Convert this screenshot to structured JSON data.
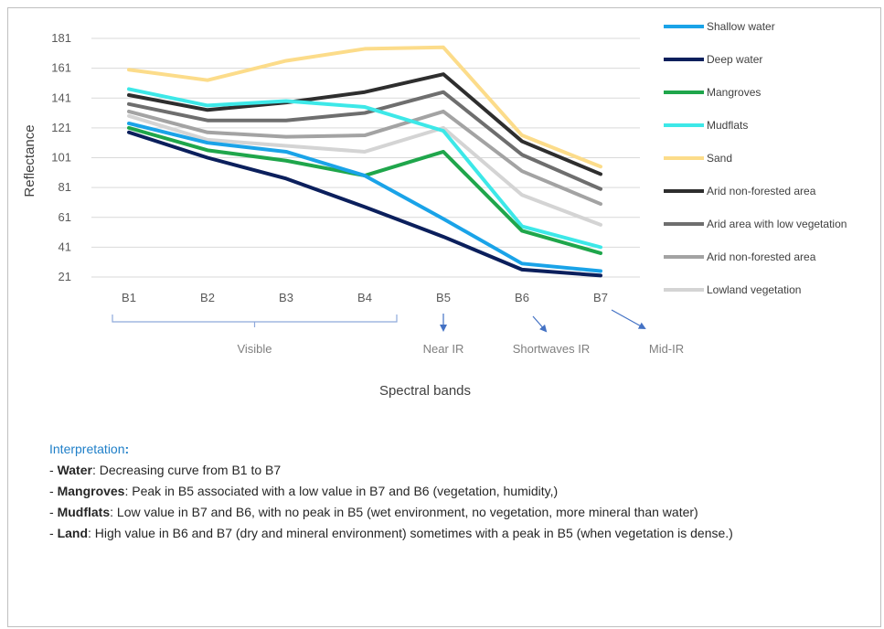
{
  "chart_data": {
    "type": "line",
    "categories": [
      "B1",
      "B2",
      "B3",
      "B4",
      "B5",
      "B6",
      "B7"
    ],
    "ylabel": "Reflectance",
    "xlabel": "Spectral bands",
    "ylim": [
      21,
      181
    ],
    "yticks": [
      21,
      41,
      61,
      81,
      101,
      121,
      141,
      161,
      181
    ],
    "grid": true,
    "legend_position": "right",
    "series": [
      {
        "name": "Shallow water",
        "color": "#1aa3e8",
        "values": [
          124,
          111,
          105,
          89,
          60,
          30,
          25
        ]
      },
      {
        "name": "Deep water",
        "color": "#0b1f5c",
        "values": [
          118,
          101,
          87,
          68,
          48,
          26,
          22
        ]
      },
      {
        "name": "Mangroves",
        "color": "#1fa64b",
        "values": [
          121,
          106,
          99,
          89,
          105,
          52,
          37
        ]
      },
      {
        "name": "Mudflats",
        "color": "#3de8e8",
        "values": [
          147,
          136,
          139,
          135,
          119,
          55,
          41
        ]
      },
      {
        "name": "Sand",
        "color": "#fcdc8a",
        "values": [
          160,
          153,
          166,
          174,
          175,
          116,
          95
        ]
      },
      {
        "name": "Arid non-forested area",
        "color": "#2e2e2e",
        "values": [
          143,
          133,
          138,
          145,
          157,
          112,
          90
        ]
      },
      {
        "name": "Arid area with low vegetation",
        "color": "#6e6e6e",
        "values": [
          137,
          126,
          126,
          131,
          145,
          103,
          80
        ]
      },
      {
        "name": "Arid non-forested area",
        "color": "#a3a3a3",
        "values": [
          132,
          118,
          115,
          116,
          132,
          92,
          70
        ]
      },
      {
        "name": "Lowland vegetation",
        "color": "#d4d4d4",
        "values": [
          129,
          113,
          109,
          105,
          121,
          76,
          56
        ]
      }
    ],
    "band_groups": [
      {
        "label": "Visible",
        "from": "B1",
        "to": "B4"
      },
      {
        "label": "Near IR",
        "at": "B5"
      },
      {
        "label": "Shortwaves IR",
        "at": "B6"
      },
      {
        "label": "Mid-IR",
        "at": "B7"
      }
    ],
    "arrow_color": "#4472c4",
    "bracket_color": "#8ea9db"
  },
  "interpretation": {
    "title": "Interpretation",
    "title_colon": ":",
    "lines": [
      {
        "prefix": "- ",
        "term": "Water",
        "text": ": Decreasing curve from B1 to B7"
      },
      {
        "prefix": "- ",
        "term": "Mangroves",
        "text": ": Peak in B5 associated with a low value in B7 and B6 (vegetation, humidity,)"
      },
      {
        "prefix": "- ",
        "term": "Mudflats",
        "text": ": Low value in B7 and B6, with no peak in B5 (wet environment, no vegetation, more mineral than water)"
      },
      {
        "prefix": "- ",
        "term": "Land",
        "text": ": High value in B6 and B7 (dry and mineral environment) sometimes with a peak in B5 (when vegetation is dense.)"
      }
    ]
  }
}
